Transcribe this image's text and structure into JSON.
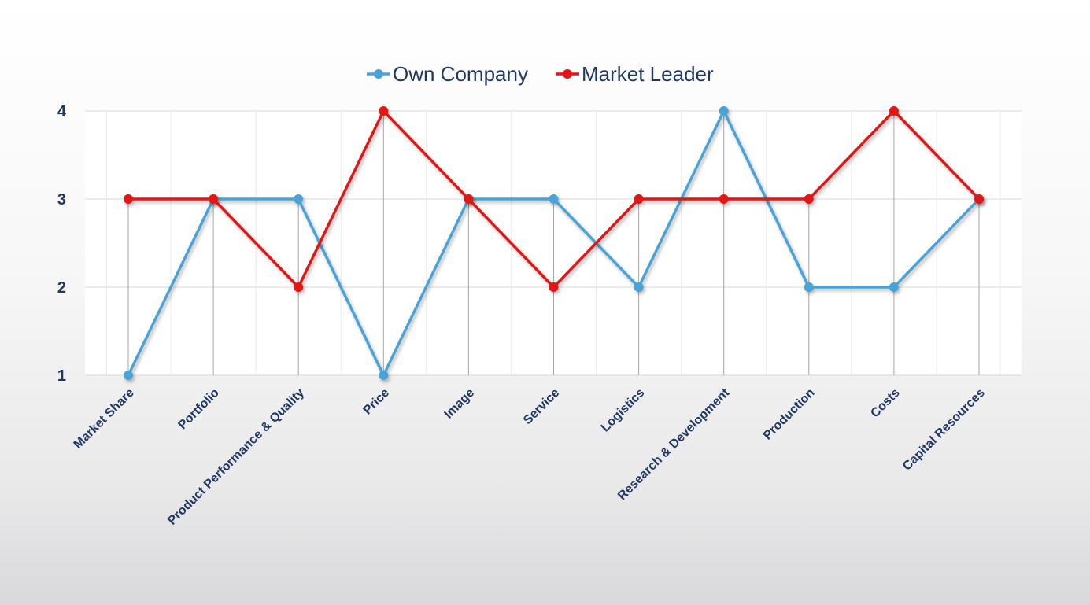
{
  "chart_data": {
    "type": "line",
    "categories": [
      "Market Share",
      "Portfolio",
      "Product Performance & Quality",
      "Price",
      "Image",
      "Service",
      "Logistics",
      "Research & Development",
      "Production",
      "Costs",
      "Capital Resources"
    ],
    "series": [
      {
        "name": "Own Company",
        "values": [
          1,
          3,
          3,
          1,
          3,
          3,
          2,
          4,
          2,
          2,
          3
        ],
        "color": "#4aa3d8"
      },
      {
        "name": "Market Leader",
        "values": [
          3,
          3,
          2,
          4,
          3,
          2,
          3,
          3,
          3,
          4,
          3
        ],
        "color": "#e31414"
      }
    ],
    "yticks": [
      1,
      2,
      3,
      4
    ],
    "ylim": [
      1,
      4
    ],
    "title": "",
    "xlabel": "",
    "ylabel": "",
    "legend": "top-center",
    "grid": true,
    "drop_lines": true
  }
}
